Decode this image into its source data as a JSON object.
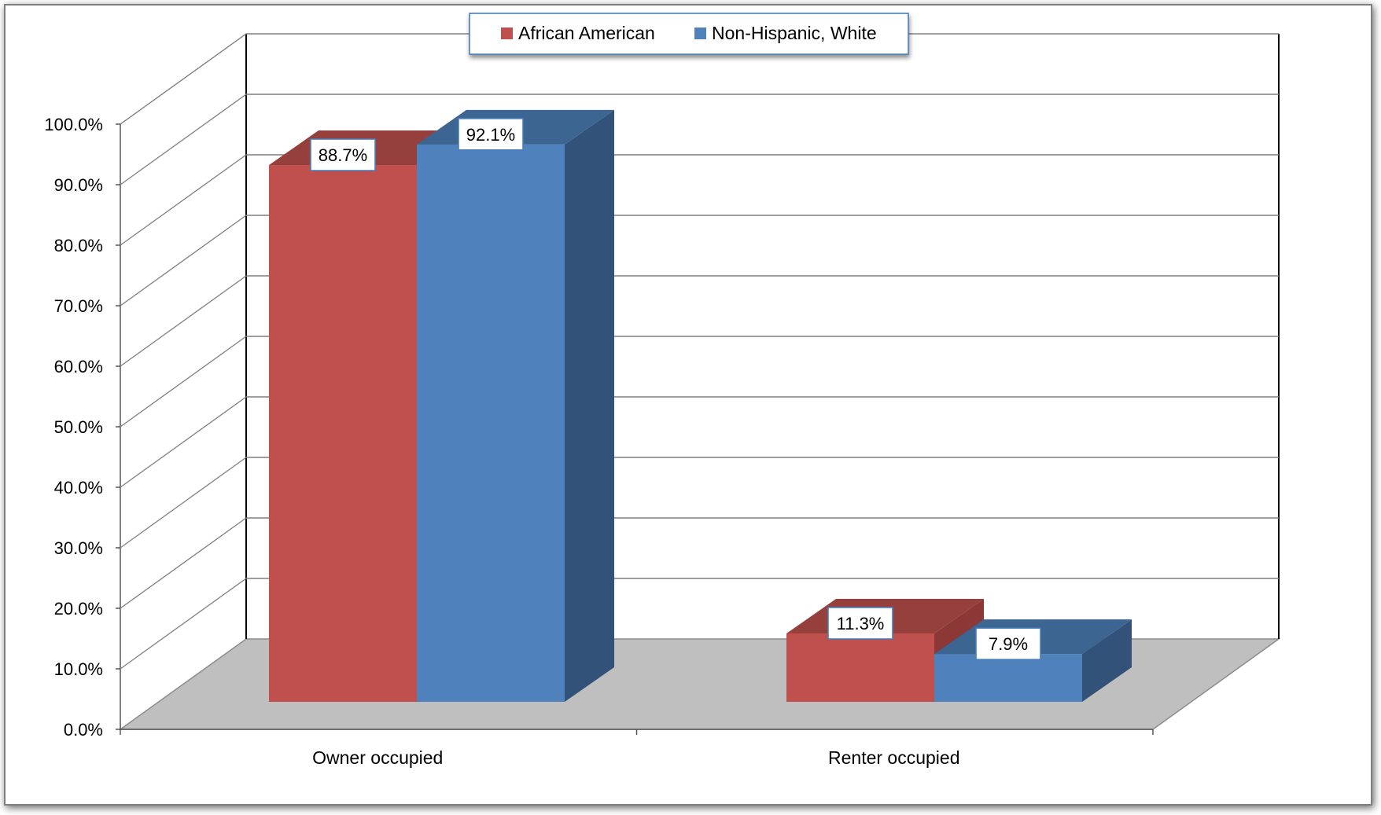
{
  "chart_data": {
    "type": "bar",
    "categories": [
      "Owner occupied",
      "Renter occupied"
    ],
    "series": [
      {
        "name": "African American",
        "values": [
          88.7,
          11.3
        ],
        "color": "#C0504D",
        "side_color": "#8C3836",
        "top_color": "#96403D"
      },
      {
        "name": "Non-Hispanic, White",
        "values": [
          92.1,
          7.9
        ],
        "color": "#4F81BD",
        "side_color": "#325279",
        "top_color": "#3C6592"
      }
    ],
    "data_labels": [
      [
        "88.7%",
        "11.3%"
      ],
      [
        "92.1%",
        "7.9%"
      ]
    ],
    "y_ticks": [
      "0.0%",
      "10.0%",
      "20.0%",
      "30.0%",
      "40.0%",
      "50.0%",
      "60.0%",
      "70.0%",
      "80.0%",
      "90.0%",
      "100.0%"
    ],
    "ylim": [
      0,
      100
    ],
    "grid": true,
    "legend": "top-center",
    "three_d": true,
    "floor_color": "#BFBFBF",
    "title": "",
    "xlabel": "",
    "ylabel": ""
  }
}
